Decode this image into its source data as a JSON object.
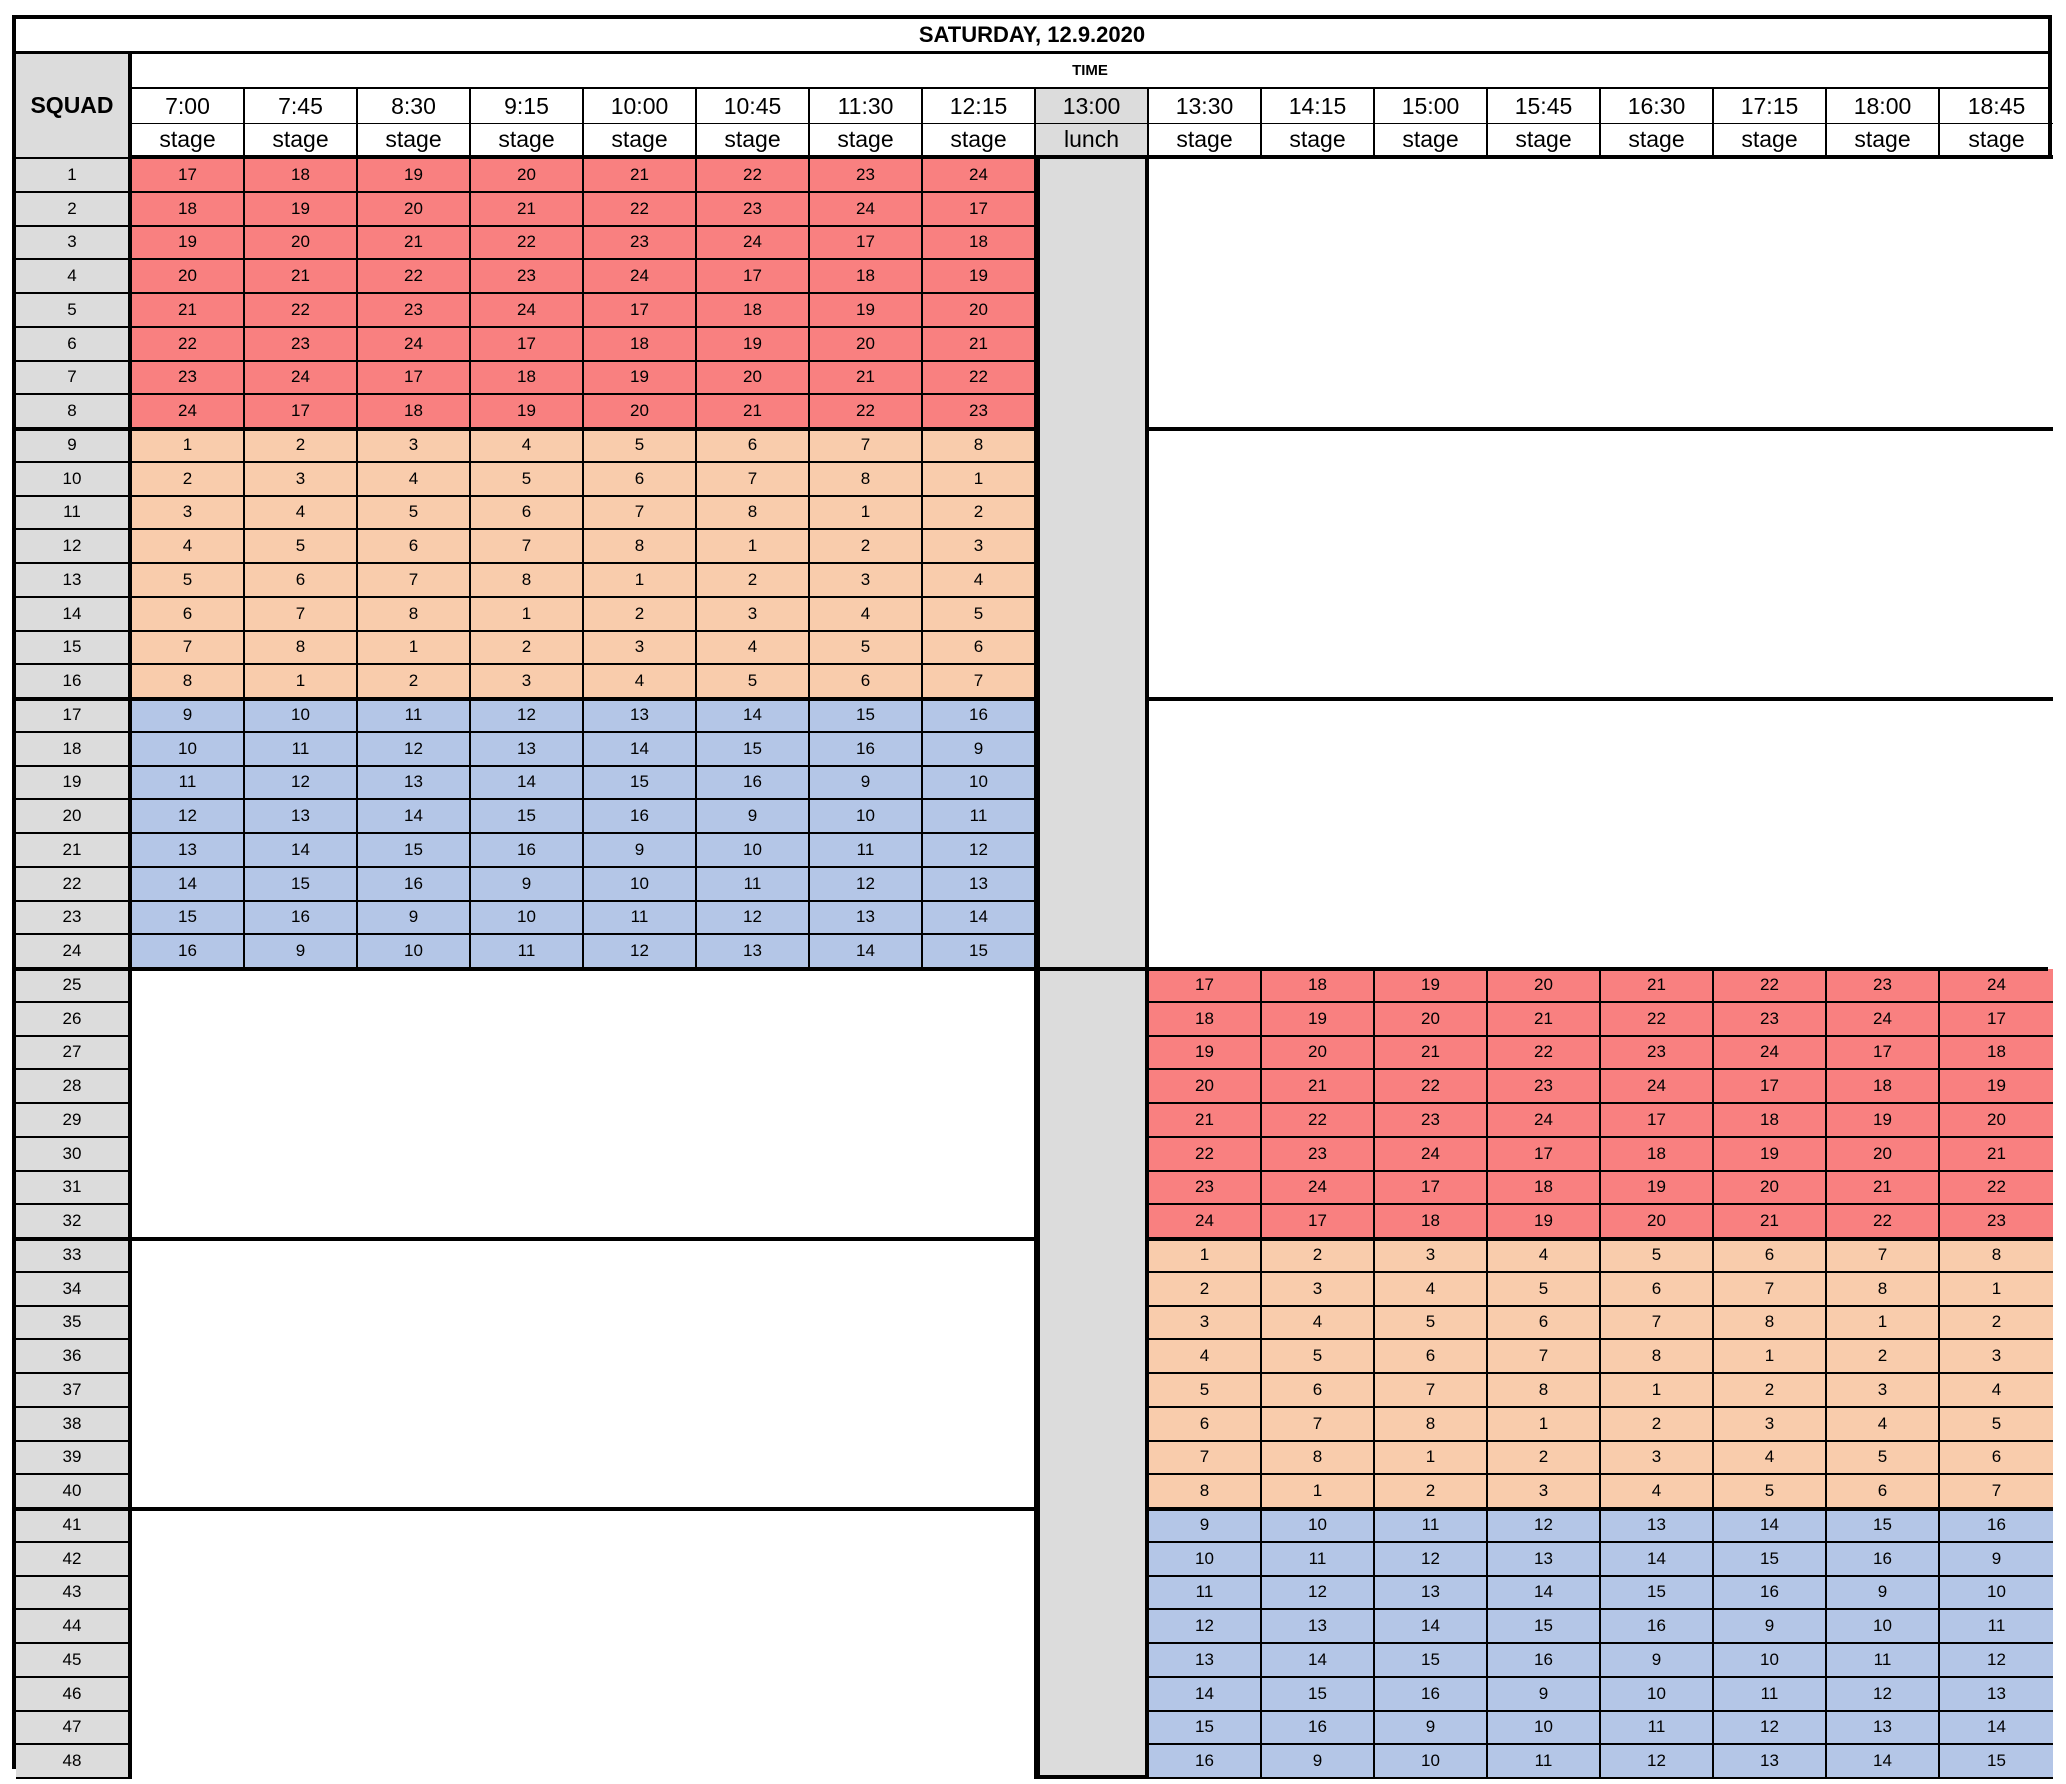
{
  "title": "SATURDAY, 12.9.2020",
  "time_header": "TIME",
  "squad_header": "SQUAD",
  "slots": [
    {
      "time": "7:00",
      "type": "stage"
    },
    {
      "time": "7:45",
      "type": "stage"
    },
    {
      "time": "8:30",
      "type": "stage"
    },
    {
      "time": "9:15",
      "type": "stage"
    },
    {
      "time": "10:00",
      "type": "stage"
    },
    {
      "time": "10:45",
      "type": "stage"
    },
    {
      "time": "11:30",
      "type": "stage"
    },
    {
      "time": "12:15",
      "type": "stage"
    },
    {
      "time": "13:00",
      "type": "lunch"
    },
    {
      "time": "13:30",
      "type": "stage"
    },
    {
      "time": "14:15",
      "type": "stage"
    },
    {
      "time": "15:00",
      "type": "stage"
    },
    {
      "time": "15:45",
      "type": "stage"
    },
    {
      "time": "16:30",
      "type": "stage"
    },
    {
      "time": "17:15",
      "type": "stage"
    },
    {
      "time": "18:00",
      "type": "stage"
    },
    {
      "time": "18:45",
      "type": "stage"
    }
  ],
  "colors": {
    "group_red": "#f98080",
    "group_peach": "#f9ccac",
    "group_blue": "#b4c6e7",
    "header_gray": "#dcdcdc",
    "title_red": "#d9161b"
  },
  "morning_schedule": [
    {
      "squad": "1",
      "color": "group_red",
      "stages": [
        "17",
        "18",
        "19",
        "20",
        "21",
        "22",
        "23",
        "24"
      ]
    },
    {
      "squad": "2",
      "color": "group_red",
      "stages": [
        "18",
        "19",
        "20",
        "21",
        "22",
        "23",
        "24",
        "17"
      ]
    },
    {
      "squad": "3",
      "color": "group_red",
      "stages": [
        "19",
        "20",
        "21",
        "22",
        "23",
        "24",
        "17",
        "18"
      ]
    },
    {
      "squad": "4",
      "color": "group_red",
      "stages": [
        "20",
        "21",
        "22",
        "23",
        "24",
        "17",
        "18",
        "19"
      ]
    },
    {
      "squad": "5",
      "color": "group_red",
      "stages": [
        "21",
        "22",
        "23",
        "24",
        "17",
        "18",
        "19",
        "20"
      ]
    },
    {
      "squad": "6",
      "color": "group_red",
      "stages": [
        "22",
        "23",
        "24",
        "17",
        "18",
        "19",
        "20",
        "21"
      ]
    },
    {
      "squad": "7",
      "color": "group_red",
      "stages": [
        "23",
        "24",
        "17",
        "18",
        "19",
        "20",
        "21",
        "22"
      ]
    },
    {
      "squad": "8",
      "color": "group_red",
      "stages": [
        "24",
        "17",
        "18",
        "19",
        "20",
        "21",
        "22",
        "23"
      ]
    },
    {
      "squad": "9",
      "color": "group_peach",
      "stages": [
        "1",
        "2",
        "3",
        "4",
        "5",
        "6",
        "7",
        "8"
      ]
    },
    {
      "squad": "10",
      "color": "group_peach",
      "stages": [
        "2",
        "3",
        "4",
        "5",
        "6",
        "7",
        "8",
        "1"
      ]
    },
    {
      "squad": "11",
      "color": "group_peach",
      "stages": [
        "3",
        "4",
        "5",
        "6",
        "7",
        "8",
        "1",
        "2"
      ]
    },
    {
      "squad": "12",
      "color": "group_peach",
      "stages": [
        "4",
        "5",
        "6",
        "7",
        "8",
        "1",
        "2",
        "3"
      ]
    },
    {
      "squad": "13",
      "color": "group_peach",
      "stages": [
        "5",
        "6",
        "7",
        "8",
        "1",
        "2",
        "3",
        "4"
      ]
    },
    {
      "squad": "14",
      "color": "group_peach",
      "stages": [
        "6",
        "7",
        "8",
        "1",
        "2",
        "3",
        "4",
        "5"
      ]
    },
    {
      "squad": "15",
      "color": "group_peach",
      "stages": [
        "7",
        "8",
        "1",
        "2",
        "3",
        "4",
        "5",
        "6"
      ]
    },
    {
      "squad": "16",
      "color": "group_peach",
      "stages": [
        "8",
        "1",
        "2",
        "3",
        "4",
        "5",
        "6",
        "7"
      ]
    },
    {
      "squad": "17",
      "color": "group_blue",
      "stages": [
        "9",
        "10",
        "11",
        "12",
        "13",
        "14",
        "15",
        "16"
      ]
    },
    {
      "squad": "18",
      "color": "group_blue",
      "stages": [
        "10",
        "11",
        "12",
        "13",
        "14",
        "15",
        "16",
        "9"
      ]
    },
    {
      "squad": "19",
      "color": "group_blue",
      "stages": [
        "11",
        "12",
        "13",
        "14",
        "15",
        "16",
        "9",
        "10"
      ]
    },
    {
      "squad": "20",
      "color": "group_blue",
      "stages": [
        "12",
        "13",
        "14",
        "15",
        "16",
        "9",
        "10",
        "11"
      ]
    },
    {
      "squad": "21",
      "color": "group_blue",
      "stages": [
        "13",
        "14",
        "15",
        "16",
        "9",
        "10",
        "11",
        "12"
      ]
    },
    {
      "squad": "22",
      "color": "group_blue",
      "stages": [
        "14",
        "15",
        "16",
        "9",
        "10",
        "11",
        "12",
        "13"
      ]
    },
    {
      "squad": "23",
      "color": "group_blue",
      "stages": [
        "15",
        "16",
        "9",
        "10",
        "11",
        "12",
        "13",
        "14"
      ]
    },
    {
      "squad": "24",
      "color": "group_blue",
      "stages": [
        "16",
        "9",
        "10",
        "11",
        "12",
        "13",
        "14",
        "15"
      ]
    }
  ],
  "afternoon_schedule": [
    {
      "squad": "25",
      "color": "group_red",
      "stages": [
        "17",
        "18",
        "19",
        "20",
        "21",
        "22",
        "23",
        "24"
      ]
    },
    {
      "squad": "26",
      "color": "group_red",
      "stages": [
        "18",
        "19",
        "20",
        "21",
        "22",
        "23",
        "24",
        "17"
      ]
    },
    {
      "squad": "27",
      "color": "group_red",
      "stages": [
        "19",
        "20",
        "21",
        "22",
        "23",
        "24",
        "17",
        "18"
      ]
    },
    {
      "squad": "28",
      "color": "group_red",
      "stages": [
        "20",
        "21",
        "22",
        "23",
        "24",
        "17",
        "18",
        "19"
      ]
    },
    {
      "squad": "29",
      "color": "group_red",
      "stages": [
        "21",
        "22",
        "23",
        "24",
        "17",
        "18",
        "19",
        "20"
      ]
    },
    {
      "squad": "30",
      "color": "group_red",
      "stages": [
        "22",
        "23",
        "24",
        "17",
        "18",
        "19",
        "20",
        "21"
      ]
    },
    {
      "squad": "31",
      "color": "group_red",
      "stages": [
        "23",
        "24",
        "17",
        "18",
        "19",
        "20",
        "21",
        "22"
      ]
    },
    {
      "squad": "32",
      "color": "group_red",
      "stages": [
        "24",
        "17",
        "18",
        "19",
        "20",
        "21",
        "22",
        "23"
      ]
    },
    {
      "squad": "33",
      "color": "group_peach",
      "stages": [
        "1",
        "2",
        "3",
        "4",
        "5",
        "6",
        "7",
        "8"
      ]
    },
    {
      "squad": "34",
      "color": "group_peach",
      "stages": [
        "2",
        "3",
        "4",
        "5",
        "6",
        "7",
        "8",
        "1"
      ]
    },
    {
      "squad": "35",
      "color": "group_peach",
      "stages": [
        "3",
        "4",
        "5",
        "6",
        "7",
        "8",
        "1",
        "2"
      ]
    },
    {
      "squad": "36",
      "color": "group_peach",
      "stages": [
        "4",
        "5",
        "6",
        "7",
        "8",
        "1",
        "2",
        "3"
      ]
    },
    {
      "squad": "37",
      "color": "group_peach",
      "stages": [
        "5",
        "6",
        "7",
        "8",
        "1",
        "2",
        "3",
        "4"
      ]
    },
    {
      "squad": "38",
      "color": "group_peach",
      "stages": [
        "6",
        "7",
        "8",
        "1",
        "2",
        "3",
        "4",
        "5"
      ]
    },
    {
      "squad": "39",
      "color": "group_peach",
      "stages": [
        "7",
        "8",
        "1",
        "2",
        "3",
        "4",
        "5",
        "6"
      ]
    },
    {
      "squad": "40",
      "color": "group_peach",
      "stages": [
        "8",
        "1",
        "2",
        "3",
        "4",
        "5",
        "6",
        "7"
      ]
    },
    {
      "squad": "41",
      "color": "group_blue",
      "stages": [
        "9",
        "10",
        "11",
        "12",
        "13",
        "14",
        "15",
        "16"
      ]
    },
    {
      "squad": "42",
      "color": "group_blue",
      "stages": [
        "10",
        "11",
        "12",
        "13",
        "14",
        "15",
        "16",
        "9"
      ]
    },
    {
      "squad": "43",
      "color": "group_blue",
      "stages": [
        "11",
        "12",
        "13",
        "14",
        "15",
        "16",
        "9",
        "10"
      ]
    },
    {
      "squad": "44",
      "color": "group_blue",
      "stages": [
        "12",
        "13",
        "14",
        "15",
        "16",
        "9",
        "10",
        "11"
      ]
    },
    {
      "squad": "45",
      "color": "group_blue",
      "stages": [
        "13",
        "14",
        "15",
        "16",
        "9",
        "10",
        "11",
        "12"
      ]
    },
    {
      "squad": "46",
      "color": "group_blue",
      "stages": [
        "14",
        "15",
        "16",
        "9",
        "10",
        "11",
        "12",
        "13"
      ]
    },
    {
      "squad": "47",
      "color": "group_blue",
      "stages": [
        "15",
        "16",
        "9",
        "10",
        "11",
        "12",
        "13",
        "14"
      ]
    },
    {
      "squad": "48",
      "color": "group_blue",
      "stages": [
        "16",
        "9",
        "10",
        "11",
        "12",
        "13",
        "14",
        "15"
      ]
    }
  ]
}
